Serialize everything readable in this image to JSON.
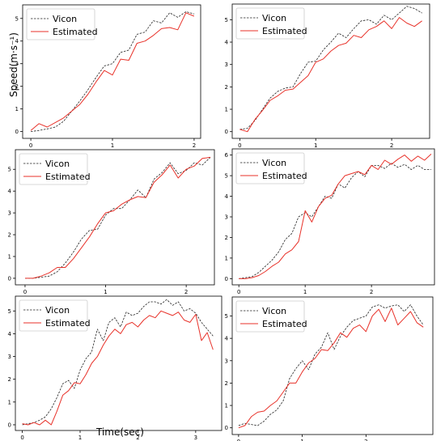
{
  "labels": {
    "ylabel": "Speed(m·s⁻¹)",
    "xlabel": "Time(sec)"
  },
  "colors": {
    "vicon": "#222222",
    "estimated": "#e8322a",
    "axis": "#000000"
  },
  "chart_data": [
    {
      "type": "line",
      "xlim": [
        -0.1,
        2.08
      ],
      "ylim": [
        -0.3,
        5.6
      ],
      "xticks": [
        0,
        1,
        2
      ],
      "yticks": [
        0,
        1,
        2,
        3,
        4,
        5
      ],
      "legend": "top-left",
      "series": [
        {
          "name": "Vicon",
          "style": "dashed",
          "x": [
            0,
            0.1,
            0.2,
            0.3,
            0.4,
            0.5,
            0.6,
            0.7,
            0.8,
            0.9,
            1.0,
            1.1,
            1.2,
            1.3,
            1.4,
            1.5,
            1.6,
            1.7,
            1.8,
            1.9,
            2.0
          ],
          "y": [
            0.0,
            0.05,
            0.12,
            0.2,
            0.45,
            0.9,
            1.35,
            1.85,
            2.4,
            2.9,
            3.0,
            3.5,
            3.6,
            4.3,
            4.4,
            4.9,
            4.8,
            5.25,
            5.05,
            5.3,
            5.2
          ]
        },
        {
          "name": "Estimated",
          "style": "solid",
          "x": [
            0,
            0.1,
            0.2,
            0.3,
            0.4,
            0.5,
            0.6,
            0.7,
            0.8,
            0.9,
            1.0,
            1.1,
            1.2,
            1.3,
            1.4,
            1.5,
            1.6,
            1.7,
            1.8,
            1.9,
            2.0
          ],
          "y": [
            0.05,
            0.35,
            0.2,
            0.4,
            0.6,
            0.9,
            1.2,
            1.65,
            2.2,
            2.7,
            2.5,
            3.2,
            3.15,
            3.9,
            4.0,
            4.25,
            4.55,
            4.6,
            4.5,
            5.25,
            5.1
          ]
        }
      ]
    },
    {
      "type": "line",
      "xlim": [
        -0.1,
        2.5
      ],
      "ylim": [
        -0.3,
        5.7
      ],
      "xticks": [
        0,
        1,
        2
      ],
      "yticks": [
        0,
        1,
        2,
        3,
        4,
        5
      ],
      "legend": "top-left",
      "series": [
        {
          "name": "Vicon",
          "style": "dashed",
          "x": [
            0,
            0.1,
            0.2,
            0.3,
            0.4,
            0.5,
            0.6,
            0.7,
            0.8,
            0.9,
            1.0,
            1.1,
            1.2,
            1.3,
            1.4,
            1.5,
            1.6,
            1.7,
            1.8,
            1.9,
            2.0,
            2.1,
            2.2,
            2.3,
            2.4
          ],
          "y": [
            0.1,
            0.15,
            0.5,
            1.0,
            1.5,
            1.8,
            1.95,
            2.0,
            2.6,
            3.1,
            3.15,
            3.65,
            4.0,
            4.4,
            4.2,
            4.6,
            4.95,
            5.0,
            4.8,
            5.2,
            5.0,
            5.3,
            5.6,
            5.5,
            5.3
          ]
        },
        {
          "name": "Estimated",
          "style": "solid",
          "x": [
            0,
            0.1,
            0.2,
            0.3,
            0.4,
            0.5,
            0.6,
            0.7,
            0.8,
            0.9,
            1.0,
            1.1,
            1.2,
            1.3,
            1.4,
            1.5,
            1.6,
            1.7,
            1.8,
            1.9,
            2.0,
            2.1,
            2.2,
            2.3,
            2.4
          ],
          "y": [
            0.1,
            0.0,
            0.55,
            0.95,
            1.4,
            1.6,
            1.85,
            1.9,
            2.2,
            2.5,
            3.1,
            3.25,
            3.6,
            3.85,
            3.95,
            4.3,
            4.2,
            4.55,
            4.7,
            4.95,
            4.6,
            5.1,
            4.85,
            4.7,
            4.95
          ]
        }
      ]
    },
    {
      "type": "line",
      "xlim": [
        -0.12,
        2.35
      ],
      "ylim": [
        -0.3,
        5.9
      ],
      "xticks": [
        0,
        1,
        2
      ],
      "yticks": [
        0,
        1,
        2,
        3,
        4,
        5
      ],
      "legend": "top-left",
      "series": [
        {
          "name": "Vicon",
          "style": "dashed",
          "x": [
            0,
            0.1,
            0.2,
            0.3,
            0.4,
            0.5,
            0.6,
            0.7,
            0.8,
            0.9,
            1.0,
            1.1,
            1.2,
            1.3,
            1.4,
            1.5,
            1.6,
            1.7,
            1.8,
            1.9,
            2.0,
            2.1,
            2.2,
            2.3
          ],
          "y": [
            0.0,
            0.0,
            0.05,
            0.1,
            0.3,
            0.7,
            1.2,
            1.8,
            2.2,
            2.25,
            2.9,
            3.2,
            3.2,
            3.6,
            4.05,
            3.7,
            4.55,
            4.85,
            5.3,
            4.8,
            4.95,
            5.3,
            5.2,
            5.55
          ]
        },
        {
          "name": "Estimated",
          "style": "solid",
          "x": [
            0,
            0.1,
            0.2,
            0.3,
            0.4,
            0.5,
            0.6,
            0.7,
            0.8,
            0.9,
            1.0,
            1.1,
            1.2,
            1.3,
            1.4,
            1.5,
            1.6,
            1.7,
            1.8,
            1.9,
            2.0,
            2.1,
            2.2,
            2.3
          ],
          "y": [
            0.0,
            0.0,
            0.1,
            0.25,
            0.5,
            0.5,
            0.9,
            1.4,
            1.9,
            2.5,
            3.0,
            3.1,
            3.4,
            3.6,
            3.75,
            3.7,
            4.4,
            4.75,
            5.2,
            4.6,
            5.0,
            5.15,
            5.5,
            5.55
          ]
        }
      ]
    },
    {
      "type": "line",
      "xlim": [
        -0.1,
        2.95
      ],
      "ylim": [
        -0.3,
        6.3
      ],
      "xticks": [
        0,
        1,
        2
      ],
      "yticks": [
        0,
        1,
        2,
        3,
        4,
        5,
        6
      ],
      "legend": "top-left",
      "series": [
        {
          "name": "Vicon",
          "style": "dashed",
          "x": [
            0,
            0.1,
            0.2,
            0.3,
            0.4,
            0.5,
            0.6,
            0.7,
            0.8,
            0.9,
            1.0,
            1.1,
            1.2,
            1.3,
            1.4,
            1.5,
            1.6,
            1.7,
            1.8,
            1.9,
            2.0,
            2.1,
            2.2,
            2.3,
            2.4,
            2.5,
            2.6,
            2.7,
            2.8,
            2.9
          ],
          "y": [
            0.0,
            0.05,
            0.1,
            0.3,
            0.6,
            0.9,
            1.3,
            1.9,
            2.2,
            3.0,
            3.2,
            3.0,
            3.5,
            4.0,
            3.9,
            4.6,
            4.4,
            4.9,
            5.2,
            4.95,
            5.5,
            5.5,
            5.35,
            5.6,
            5.4,
            5.55,
            5.3,
            5.5,
            5.3,
            5.3
          ]
        },
        {
          "name": "Estimated",
          "style": "solid",
          "x": [
            0,
            0.1,
            0.2,
            0.3,
            0.4,
            0.5,
            0.6,
            0.7,
            0.8,
            0.9,
            1.0,
            1.1,
            1.2,
            1.3,
            1.4,
            1.5,
            1.6,
            1.7,
            1.8,
            1.9,
            2.0,
            2.1,
            2.2,
            2.3,
            2.4,
            2.5,
            2.6,
            2.7,
            2.8,
            2.9
          ],
          "y": [
            0.0,
            0.0,
            0.05,
            0.15,
            0.35,
            0.6,
            0.8,
            1.2,
            1.4,
            1.8,
            3.3,
            2.75,
            3.5,
            3.9,
            4.05,
            4.6,
            5.0,
            5.1,
            5.2,
            5.05,
            5.5,
            5.3,
            5.75,
            5.55,
            5.8,
            6.0,
            5.7,
            5.95,
            5.75,
            6.05
          ]
        }
      ]
    },
    {
      "type": "line",
      "xlim": [
        -0.12,
        3.45
      ],
      "ylim": [
        -0.25,
        5.65
      ],
      "xticks": [
        0,
        1,
        2,
        3
      ],
      "yticks": [
        0,
        1,
        2,
        3,
        4,
        5
      ],
      "legend": "top-left",
      "series": [
        {
          "name": "Vicon",
          "style": "dashed",
          "x": [
            0,
            0.1,
            0.2,
            0.3,
            0.4,
            0.5,
            0.6,
            0.7,
            0.8,
            0.9,
            1.0,
            1.1,
            1.2,
            1.3,
            1.4,
            1.5,
            1.6,
            1.7,
            1.8,
            1.9,
            2.0,
            2.1,
            2.2,
            2.3,
            2.4,
            2.5,
            2.6,
            2.7,
            2.8,
            2.9,
            3.0,
            3.1,
            3.2,
            3.3
          ],
          "y": [
            0.0,
            0.05,
            0.1,
            0.2,
            0.35,
            0.7,
            1.2,
            1.8,
            1.95,
            1.6,
            2.4,
            2.9,
            3.2,
            4.2,
            3.7,
            4.5,
            4.7,
            4.3,
            4.95,
            4.8,
            4.9,
            5.2,
            5.4,
            5.4,
            5.3,
            5.5,
            5.25,
            5.4,
            5.0,
            5.1,
            4.9,
            4.5,
            4.2,
            3.9
          ]
        },
        {
          "name": "Estimated",
          "style": "solid",
          "x": [
            0,
            0.1,
            0.2,
            0.3,
            0.4,
            0.5,
            0.6,
            0.7,
            0.8,
            0.9,
            1.0,
            1.1,
            1.2,
            1.3,
            1.4,
            1.5,
            1.6,
            1.7,
            1.8,
            1.9,
            2.0,
            2.1,
            2.2,
            2.3,
            2.4,
            2.5,
            2.6,
            2.7,
            2.8,
            2.9,
            3.0,
            3.1,
            3.2,
            3.3
          ],
          "y": [
            0.05,
            0.0,
            0.1,
            0.0,
            0.2,
            0.0,
            0.6,
            1.3,
            1.5,
            1.85,
            1.8,
            2.2,
            2.7,
            3.0,
            3.5,
            3.9,
            4.2,
            4.0,
            4.4,
            4.5,
            4.3,
            4.6,
            4.8,
            4.7,
            5.0,
            4.9,
            4.8,
            4.95,
            4.6,
            4.5,
            4.85,
            3.7,
            4.05,
            3.3
          ]
        }
      ]
    },
    {
      "type": "line",
      "xlim": [
        -0.1,
        3.05
      ],
      "ylim": [
        -0.3,
        5.85
      ],
      "xticks": [
        0,
        1,
        2
      ],
      "yticks": [
        0,
        1,
        2,
        3,
        4,
        5
      ],
      "legend": "top-left",
      "series": [
        {
          "name": "Vicon",
          "style": "dashed",
          "x": [
            0,
            0.1,
            0.2,
            0.3,
            0.4,
            0.5,
            0.6,
            0.7,
            0.8,
            0.9,
            1.0,
            1.1,
            1.2,
            1.3,
            1.4,
            1.5,
            1.6,
            1.7,
            1.8,
            1.9,
            2.0,
            2.1,
            2.2,
            2.3,
            2.4,
            2.5,
            2.6,
            2.7,
            2.8,
            2.9
          ],
          "y": [
            0.1,
            0.2,
            0.15,
            0.1,
            0.3,
            0.6,
            0.8,
            1.2,
            2.2,
            2.65,
            3.0,
            2.6,
            3.3,
            3.6,
            4.25,
            3.5,
            4.1,
            4.5,
            4.8,
            4.9,
            5.0,
            5.4,
            5.5,
            5.35,
            5.45,
            5.5,
            5.2,
            5.5,
            5.0,
            4.6
          ]
        },
        {
          "name": "Estimated",
          "style": "solid",
          "x": [
            0,
            0.1,
            0.2,
            0.3,
            0.4,
            0.5,
            0.6,
            0.7,
            0.8,
            0.9,
            1.0,
            1.1,
            1.2,
            1.3,
            1.4,
            1.5,
            1.6,
            1.7,
            1.8,
            1.9,
            2.0,
            2.1,
            2.2,
            2.3,
            2.4,
            2.5,
            2.6,
            2.7,
            2.8,
            2.9
          ],
          "y": [
            0.0,
            0.1,
            0.5,
            0.7,
            0.75,
            1.0,
            1.2,
            1.6,
            2.0,
            2.0,
            2.5,
            2.9,
            3.1,
            3.5,
            3.45,
            3.8,
            4.25,
            4.05,
            4.45,
            4.6,
            4.3,
            5.0,
            5.3,
            4.75,
            5.35,
            4.6,
            4.9,
            5.2,
            4.7,
            4.5
          ]
        }
      ]
    }
  ]
}
